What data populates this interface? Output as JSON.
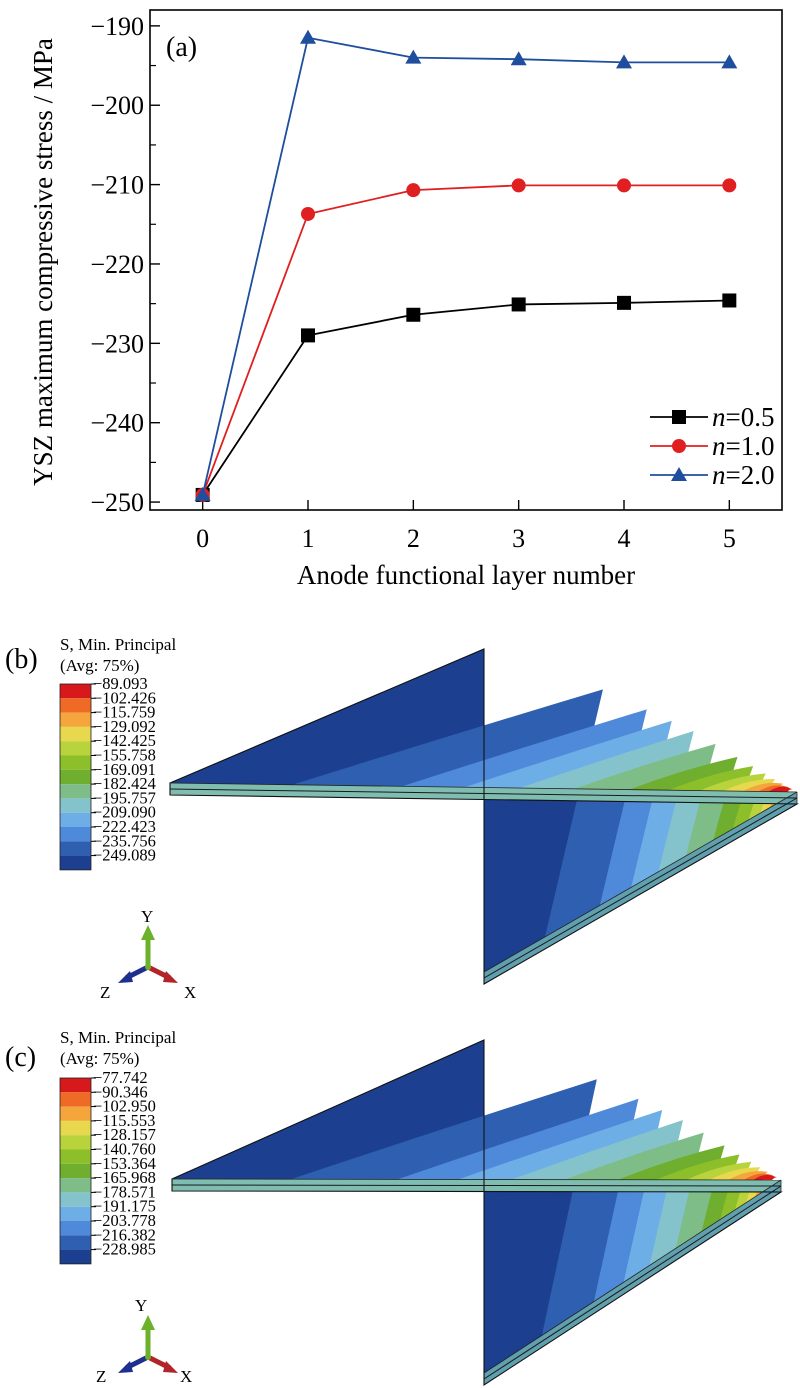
{
  "panel_a": {
    "label": "(a)",
    "legend": [
      {
        "italic": "n",
        "rest": "=0.5"
      },
      {
        "italic": "n",
        "rest": "=1.0"
      },
      {
        "italic": "n",
        "rest": "=2.0"
      }
    ]
  },
  "chart_data": {
    "type": "line",
    "title": "",
    "xlabel": "Anode functional layer number",
    "ylabel": "YSZ maximum compressive stress / MPa",
    "x": [
      0,
      1,
      2,
      3,
      4,
      5
    ],
    "xticks": [
      "0",
      "1",
      "2",
      "3",
      "4",
      "5"
    ],
    "xlim": [
      -0.5,
      5.5
    ],
    "ylim": [
      -251,
      -188
    ],
    "yticks": [
      -250,
      -240,
      -230,
      -220,
      -210,
      -200,
      -190
    ],
    "ytick_labels": [
      "−250",
      "−240",
      "−230",
      "−220",
      "−210",
      "−200",
      "−190"
    ],
    "legend_position": "bottom-right",
    "grid": false,
    "series": [
      {
        "name": "n=0.5",
        "color": "#000000",
        "marker": "square",
        "values": [
          -249.1,
          -229.0,
          -226.4,
          -225.1,
          -224.9,
          -224.6
        ]
      },
      {
        "name": "n=1.0",
        "color": "#e02020",
        "marker": "circle",
        "values": [
          -249.1,
          -213.7,
          -210.7,
          -210.1,
          -210.1,
          -210.1
        ]
      },
      {
        "name": "n=2.0",
        "color": "#1f4e9e",
        "marker": "triangle",
        "values": [
          -249.1,
          -191.5,
          -194.0,
          -194.2,
          -194.6,
          -194.6
        ]
      }
    ]
  },
  "panel_b": {
    "label": "(b)",
    "legend_title_1": "S, Min. Principal",
    "legend_title_2": "(Avg: 75%)",
    "values": [
      "−89.093",
      "−102.426",
      "−115.759",
      "−129.092",
      "−142.425",
      "−155.758",
      "−169.091",
      "−182.424",
      "−195.757",
      "−209.090",
      "−222.423",
      "−235.756",
      "−249.089"
    ],
    "axes": {
      "y": "Y",
      "z": "Z",
      "x": "X"
    }
  },
  "panel_c": {
    "label": "(c)",
    "legend_title_1": "S, Min. Principal",
    "legend_title_2": "(Avg: 75%)",
    "values": [
      "−77.742",
      "−90.346",
      "−102.950",
      "−115.553",
      "−128.157",
      "−140.760",
      "−153.364",
      "−165.968",
      "−178.571",
      "−191.175",
      "−203.778",
      "−216.382",
      "−228.985"
    ],
    "axes": {
      "y": "Y",
      "z": "Z",
      "x": "X"
    }
  },
  "contour_colors": [
    "#d7191c",
    "#ef6b25",
    "#f4a63c",
    "#e8d84e",
    "#b8d33b",
    "#8cbf2a",
    "#6fae2f",
    "#7fbd88",
    "#84c3cc",
    "#6eaee6",
    "#4f89d9",
    "#2f5fb0",
    "#1c3f8f"
  ]
}
